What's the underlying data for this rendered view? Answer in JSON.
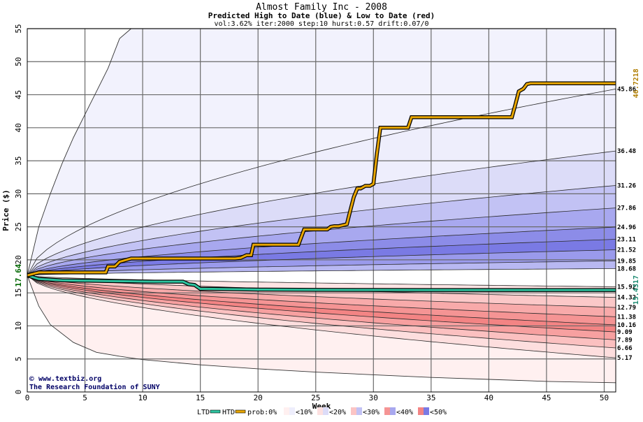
{
  "chart_data": {
    "type": "area",
    "title": "Almost Family Inc - 2008",
    "subtitle": "Predicted High to Date (blue) &  Low to Date (red)",
    "params": "vol:3.62% iter:2000 step:10 hurst:0.57 drift:0.07/0",
    "xlabel": "Week",
    "ylabel": "Price ($)",
    "xlim": [
      0,
      51
    ],
    "ylim": [
      0,
      55
    ],
    "x_ticks": [
      0,
      5,
      10,
      15,
      20,
      25,
      30,
      35,
      40,
      45,
      50
    ],
    "y_ticks": [
      5,
      10,
      15,
      20,
      25,
      30,
      35,
      40,
      45,
      50,
      55
    ],
    "grid": true,
    "start_price": "17.64",
    "htd_current": "46.7218",
    "ltd_current": "15.4317",
    "right_labels": [
      "45.86",
      "36.48",
      "31.26",
      "27.86",
      "24.96",
      "23.11",
      "21.52",
      "19.85",
      "18.68",
      "15.92",
      "14.32",
      "12.79",
      "11.38",
      "10.16",
      "9.09",
      "7.89",
      "6.66",
      "5.17"
    ],
    "high_bands": [
      {
        "label": "<10%",
        "color": "#eeeefc",
        "final": 45.86
      },
      {
        "label": "<20%",
        "color": "#dcdcf8",
        "final": 36.48
      },
      {
        "label": "<30%",
        "color": "#c2c2f4",
        "final": 31.26
      },
      {
        "label": "<40%",
        "color": "#a8a8ef",
        "final": 27.86
      },
      {
        "label": "<50%",
        "color": "#8c8ce8",
        "final": 24.96
      },
      {
        "label": "<50%",
        "color": "#7a7ae4",
        "final": 23.11
      },
      {
        "label": "<40%",
        "color": "#9a9aec",
        "final": 21.52
      },
      {
        "label": "<30%",
        "color": "#b8b8f2",
        "final": 19.85
      },
      {
        "label": "<20%",
        "color": "#d8d8f8",
        "final": 18.68
      }
    ],
    "low_bands": [
      {
        "label": "<20%",
        "color": "#fde4e4",
        "final": 15.92
      },
      {
        "label": "<30%",
        "color": "#fbc8c8",
        "final": 14.32
      },
      {
        "label": "<40%",
        "color": "#f8aaaa",
        "final": 12.79
      },
      {
        "label": "<50%",
        "color": "#f59494",
        "final": 11.38
      },
      {
        "label": "<50%",
        "color": "#f38484",
        "final": 10.16
      },
      {
        "label": "<40%",
        "color": "#f7a0a0",
        "final": 9.09
      },
      {
        "label": "<30%",
        "color": "#fbc0c0",
        "final": 7.89
      },
      {
        "label": "<20%",
        "color": "#fddede",
        "final": 6.66
      },
      {
        "label": "<10%",
        "color": "#fff0f0",
        "final": 5.17
      }
    ],
    "outer_high_envelope": {
      "x": [
        0,
        1,
        2,
        3,
        4,
        5,
        6,
        7,
        8,
        9,
        10
      ],
      "y": [
        17.64,
        25,
        30,
        34.5,
        38.5,
        42,
        45.5,
        49,
        53.5,
        55,
        55
      ]
    },
    "outer_low_envelope": {
      "x": [
        0,
        1,
        2,
        4,
        6,
        8,
        10,
        15,
        20,
        25,
        30,
        35,
        40,
        45,
        51
      ],
      "y": [
        17.64,
        13,
        10.2,
        7.5,
        6,
        5.4,
        4.9,
        4.1,
        3.5,
        3.0,
        2.6,
        2.2,
        1.9,
        1.6,
        1.4
      ]
    },
    "htd_series": {
      "name": "HTD",
      "x": [
        0,
        1,
        2,
        3,
        4,
        5,
        6,
        6.8,
        7,
        7.6,
        8,
        9,
        10,
        12,
        14,
        16,
        18,
        18.5,
        19,
        19.4,
        19.6,
        20,
        22,
        23.5,
        24,
        26,
        26.3,
        26.6,
        27,
        27.7,
        28,
        28.3,
        28.6,
        28.9,
        29.3,
        29.7,
        30,
        30.3,
        30.6,
        31,
        32,
        33,
        33.3,
        34,
        36,
        38,
        40,
        42,
        42.3,
        42.6,
        43,
        43.3,
        43.6,
        44,
        46,
        48,
        50,
        51
      ],
      "y": [
        17.64,
        18.1,
        18.1,
        18.1,
        18.1,
        18.1,
        18.1,
        18.1,
        19.0,
        19.0,
        19.7,
        20.2,
        20.2,
        20.2,
        20.2,
        20.2,
        20.2,
        20.3,
        20.7,
        20.7,
        22.3,
        22.3,
        22.3,
        22.3,
        24.6,
        24.6,
        25.0,
        25.1,
        25.1,
        25.4,
        27.5,
        29.5,
        30.8,
        30.8,
        31.2,
        31.2,
        31.5,
        36.0,
        40.0,
        40.0,
        40.0,
        40.0,
        41.6,
        41.6,
        41.6,
        41.6,
        41.6,
        41.6,
        43.5,
        45.5,
        45.9,
        46.6,
        46.72,
        46.72,
        46.72,
        46.72,
        46.72,
        46.72
      ]
    },
    "ltd_series": {
      "name": "LTD",
      "x": [
        0,
        1,
        2,
        3,
        5,
        7,
        9,
        11,
        13.5,
        14,
        14.5,
        15,
        16,
        20,
        25,
        30,
        35,
        40,
        45,
        51
      ],
      "y": [
        17.64,
        17.1,
        17.0,
        16.9,
        16.85,
        16.8,
        16.75,
        16.7,
        16.7,
        16.3,
        16.2,
        15.6,
        15.6,
        15.5,
        15.45,
        15.44,
        15.43,
        15.43,
        15.43,
        15.43
      ]
    },
    "legend": {
      "ltd_label": "LTD",
      "htd_label": "HTD",
      "prob_label": "prob:0%",
      "items": [
        "<10%",
        "<20%",
        "<30%",
        "<40%",
        "<50%"
      ],
      "colors": [
        [
          "#fff0f0",
          "#eeeefc"
        ],
        [
          "#fde0e0",
          "#dcdcf8"
        ],
        [
          "#fbc4c4",
          "#c2c2f4"
        ],
        [
          "#f59494",
          "#a8a8ef"
        ],
        [
          "#f38484",
          "#7a7ae4"
        ]
      ],
      "ltd_color": "#2ec4a0",
      "htd_color": "#e8a600"
    },
    "watermark": {
      "line1": "www.textbiz.org",
      "line2": "The Research Foundation of SUNY"
    }
  }
}
